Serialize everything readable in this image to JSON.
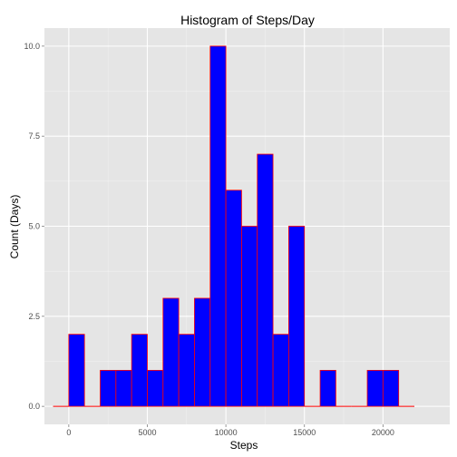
{
  "chart_data": {
    "type": "bar",
    "title": "Histogram of Steps/Day",
    "xlabel": "Steps",
    "ylabel": "Count (Days)",
    "x_ticks": [
      {
        "value": 0,
        "label": "0"
      },
      {
        "value": 5000,
        "label": "5000"
      },
      {
        "value": 10000,
        "label": "10000"
      },
      {
        "value": 15000,
        "label": "15000"
      },
      {
        "value": 20000,
        "label": "20000"
      }
    ],
    "y_ticks": [
      {
        "value": 0,
        "label": "0.0"
      },
      {
        "value": 2.5,
        "label": "2.5"
      },
      {
        "value": 5,
        "label": "5.0"
      },
      {
        "value": 7.5,
        "label": "7.5"
      },
      {
        "value": 10,
        "label": "10.0"
      }
    ],
    "xlim": [
      -1550,
      24250
    ],
    "ylim": [
      -0.5,
      10.5
    ],
    "bin_width": 1000,
    "bins": [
      {
        "start": -1000,
        "end": 0,
        "count": 0
      },
      {
        "start": 0,
        "end": 1000,
        "count": 2
      },
      {
        "start": 1000,
        "end": 2000,
        "count": 0
      },
      {
        "start": 2000,
        "end": 3000,
        "count": 1
      },
      {
        "start": 3000,
        "end": 4000,
        "count": 1
      },
      {
        "start": 4000,
        "end": 5000,
        "count": 2
      },
      {
        "start": 5000,
        "end": 6000,
        "count": 1
      },
      {
        "start": 6000,
        "end": 7000,
        "count": 3
      },
      {
        "start": 7000,
        "end": 8000,
        "count": 2
      },
      {
        "start": 8000,
        "end": 9000,
        "count": 3
      },
      {
        "start": 9000,
        "end": 10000,
        "count": 10
      },
      {
        "start": 10000,
        "end": 11000,
        "count": 6
      },
      {
        "start": 11000,
        "end": 12000,
        "count": 5
      },
      {
        "start": 12000,
        "end": 13000,
        "count": 7
      },
      {
        "start": 13000,
        "end": 14000,
        "count": 2
      },
      {
        "start": 14000,
        "end": 15000,
        "count": 5
      },
      {
        "start": 15000,
        "end": 16000,
        "count": 0
      },
      {
        "start": 16000,
        "end": 17000,
        "count": 1
      },
      {
        "start": 17000,
        "end": 18000,
        "count": 0
      },
      {
        "start": 18000,
        "end": 19000,
        "count": 0
      },
      {
        "start": 19000,
        "end": 20000,
        "count": 1
      },
      {
        "start": 20000,
        "end": 21000,
        "count": 1
      },
      {
        "start": 21000,
        "end": 22000,
        "count": 0
      }
    ],
    "fill_color": "#0000ff",
    "outline_color": "#ff0000",
    "panel_color": "#e5e5e5",
    "grid_color": "#ffffff",
    "grid": true,
    "legend": "none"
  }
}
